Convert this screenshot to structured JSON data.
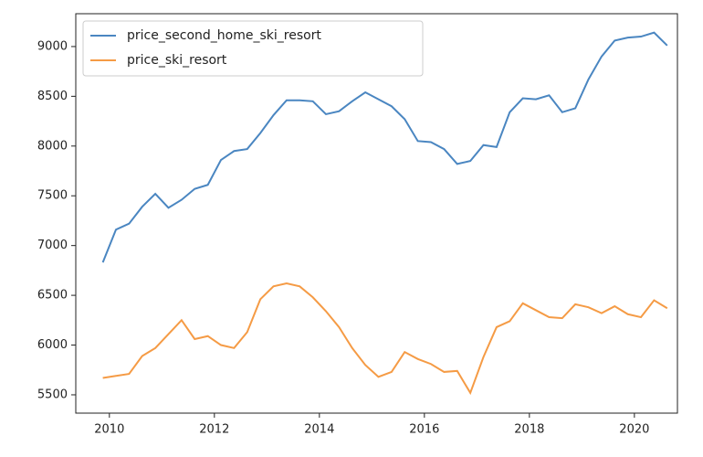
{
  "chart_data": {
    "type": "line",
    "x": [
      2009.875,
      2010.125,
      2010.375,
      2010.625,
      2010.875,
      2011.125,
      2011.375,
      2011.625,
      2011.875,
      2012.125,
      2012.375,
      2012.625,
      2012.875,
      2013.125,
      2013.375,
      2013.625,
      2013.875,
      2014.125,
      2014.375,
      2014.625,
      2014.875,
      2015.125,
      2015.375,
      2015.625,
      2015.875,
      2016.125,
      2016.375,
      2016.625,
      2016.875,
      2017.125,
      2017.375,
      2017.625,
      2017.875,
      2018.125,
      2018.375,
      2018.625,
      2018.875,
      2019.125,
      2019.375,
      2019.625,
      2019.875,
      2020.125,
      2020.375,
      2020.625
    ],
    "series": [
      {
        "name": "price_second_home_ski_resort",
        "color": "#4a86c1",
        "values": [
          6830,
          7160,
          7220,
          7390,
          7520,
          7380,
          7460,
          7570,
          7610,
          7860,
          7950,
          7970,
          8130,
          8310,
          8460,
          8460,
          8450,
          8320,
          8350,
          8450,
          8540,
          8470,
          8400,
          8270,
          8050,
          8040,
          7970,
          7820,
          7850,
          8010,
          7990,
          8340,
          8480,
          8470,
          8510,
          8340,
          8380,
          8670,
          8900,
          9060,
          9090,
          9100,
          9140,
          9010
        ]
      },
      {
        "name": "price_ski_resort",
        "color": "#f59b45",
        "values": [
          5670,
          5690,
          5710,
          5890,
          5970,
          6110,
          6250,
          6060,
          6090,
          6000,
          5970,
          6130,
          6460,
          6590,
          6620,
          6590,
          6480,
          6340,
          6180,
          5970,
          5800,
          5680,
          5730,
          5930,
          5860,
          5810,
          5730,
          5740,
          5520,
          5880,
          6180,
          6240,
          6420,
          6350,
          6280,
          6270,
          6410,
          6380,
          6320,
          6390,
          6310,
          6280,
          6450,
          6370
        ]
      }
    ],
    "xlim": [
      2009.36,
      2020.82
    ],
    "xticks": [
      2010,
      2012,
      2014,
      2016,
      2018,
      2020
    ],
    "ylim": [
      5316,
      9330
    ],
    "yticks": [
      5500,
      6000,
      6500,
      7000,
      7500,
      8000,
      8500,
      9000
    ],
    "legend": "upper left"
  }
}
